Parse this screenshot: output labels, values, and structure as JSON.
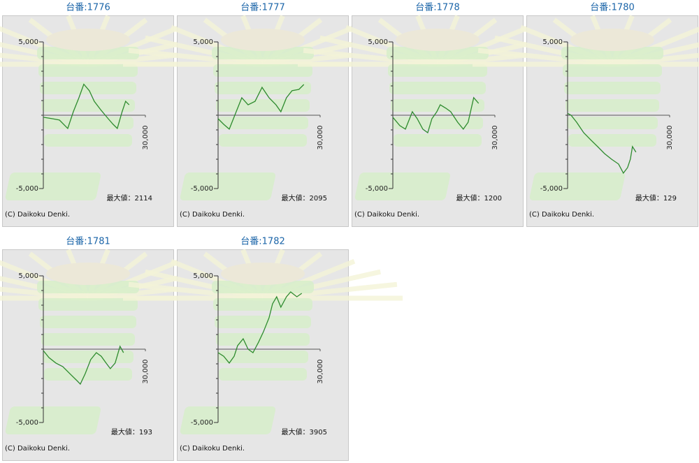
{
  "chart_data": [
    {
      "type": "line",
      "title": "台番:1776",
      "xlim": [
        0,
        30000
      ],
      "ylim": [
        -5000,
        5000
      ],
      "xticks": [
        {
          "value": 30000,
          "label": "30,000"
        }
      ],
      "yticks": [
        {
          "value": 5000,
          "label": "5,000"
        },
        {
          "value": -5000,
          "label": "-5,000"
        }
      ],
      "max_label": "最大値：2114",
      "credit": "(C) Daikoku Denki.",
      "x": [
        0,
        2670,
        4720,
        7180,
        8820,
        10450,
        11890,
        13530,
        14970,
        17020,
        19070,
        20500,
        21730,
        23160,
        24190,
        25210
      ],
      "series": [
        {
          "color": "#2e8b2e",
          "values": [
            -140,
            -240,
            -330,
            -900,
            240,
            1190,
            2114,
            1670,
            950,
            330,
            -240,
            -620,
            -900,
            240,
            950,
            710
          ]
        }
      ]
    },
    {
      "type": "line",
      "title": "台番:1777",
      "xlim": [
        0,
        30000
      ],
      "ylim": [
        -5000,
        5000
      ],
      "xticks": [
        {
          "value": 30000,
          "label": "30,000"
        }
      ],
      "yticks": [
        {
          "value": 5000,
          "label": "5,000"
        },
        {
          "value": -5000,
          "label": "-5,000"
        }
      ],
      "max_label": "最大値：2095",
      "credit": "(C) Daikoku Denki.",
      "x": [
        0,
        1640,
        3280,
        5330,
        6970,
        8820,
        10870,
        12920,
        14970,
        17020,
        18450,
        20090,
        21730,
        23780,
        25210
      ],
      "series": [
        {
          "color": "#2e8b2e",
          "values": [
            -240,
            -620,
            -950,
            240,
            1190,
            710,
            950,
            1900,
            1190,
            710,
            240,
            1190,
            1670,
            1760,
            2095
          ]
        }
      ]
    },
    {
      "type": "line",
      "title": "台番:1778",
      "xlim": [
        0,
        30000
      ],
      "ylim": [
        -5000,
        5000
      ],
      "xticks": [
        {
          "value": 30000,
          "label": "30,000"
        }
      ],
      "yticks": [
        {
          "value": 5000,
          "label": "5,000"
        },
        {
          "value": -5000,
          "label": "-5,000"
        }
      ],
      "max_label": "最大値：1200",
      "credit": "(C) Daikoku Denki.",
      "x": [
        0,
        2050,
        3690,
        5740,
        7180,
        8820,
        10250,
        11480,
        12920,
        13940,
        15580,
        17020,
        19070,
        20710,
        22140,
        23780,
        25210
      ],
      "series": [
        {
          "color": "#2e8b2e",
          "values": [
            -140,
            -710,
            -950,
            240,
            -240,
            -950,
            -1190,
            -240,
            240,
            710,
            480,
            240,
            -480,
            -950,
            -480,
            1200,
            810
          ]
        }
      ]
    },
    {
      "type": "line",
      "title": "台番:1780",
      "xlim": [
        0,
        30000
      ],
      "ylim": [
        -5000,
        5000
      ],
      "xticks": [
        {
          "value": 30000,
          "label": "30,000"
        }
      ],
      "yticks": [
        {
          "value": 5000,
          "label": "5,000"
        },
        {
          "value": -5000,
          "label": "-5,000"
        }
      ],
      "max_label": "最大値：129",
      "credit": "(C) Daikoku Denki.",
      "x": [
        0,
        1030,
        2670,
        4720,
        6770,
        8820,
        10870,
        12920,
        14970,
        16400,
        17630,
        18450,
        19070,
        20090
      ],
      "series": [
        {
          "color": "#2e8b2e",
          "values": [
            129,
            0,
            -480,
            -1190,
            -1670,
            -2140,
            -2620,
            -3000,
            -3330,
            -3950,
            -3570,
            -3000,
            -2140,
            -2520
          ]
        }
      ]
    },
    {
      "type": "line",
      "title": "台番:1781",
      "xlim": [
        0,
        30000
      ],
      "ylim": [
        -5000,
        5000
      ],
      "xticks": [
        {
          "value": 30000,
          "label": "30,000"
        }
      ],
      "yticks": [
        {
          "value": 5000,
          "label": "5,000"
        },
        {
          "value": -5000,
          "label": "-5,000"
        }
      ],
      "max_label": "最大値：193",
      "credit": "(C) Daikoku Denki.",
      "x": [
        0,
        1640,
        3690,
        5740,
        7790,
        9840,
        10870,
        12300,
        13940,
        15580,
        17020,
        18450,
        19680,
        21110,
        22550,
        23570
      ],
      "series": [
        {
          "color": "#2e8b2e",
          "values": [
            -100,
            -570,
            -950,
            -1190,
            -1670,
            -2140,
            -2380,
            -1670,
            -710,
            -240,
            -480,
            -950,
            -1330,
            -950,
            193,
            -240
          ]
        }
      ]
    },
    {
      "type": "line",
      "title": "台番:1782",
      "xlim": [
        0,
        30000
      ],
      "ylim": [
        -5000,
        5000
      ],
      "xticks": [
        {
          "value": 30000,
          "label": "30,000"
        }
      ],
      "yticks": [
        {
          "value": 5000,
          "label": "5,000"
        },
        {
          "value": -5000,
          "label": "-5,000"
        }
      ],
      "max_label": "最大値：3905",
      "credit": "(C) Daikoku Denki.",
      "x": [
        0,
        1640,
        3280,
        4720,
        5740,
        7380,
        8820,
        10250,
        11890,
        13330,
        14970,
        16000,
        17220,
        18450,
        20090,
        21320,
        23160,
        24600
      ],
      "series": [
        {
          "color": "#2e8b2e",
          "values": [
            -240,
            -480,
            -950,
            -480,
            240,
            710,
            0,
            -240,
            480,
            1190,
            2140,
            3090,
            3570,
            2860,
            3570,
            3905,
            3570,
            3810
          ]
        }
      ]
    }
  ]
}
